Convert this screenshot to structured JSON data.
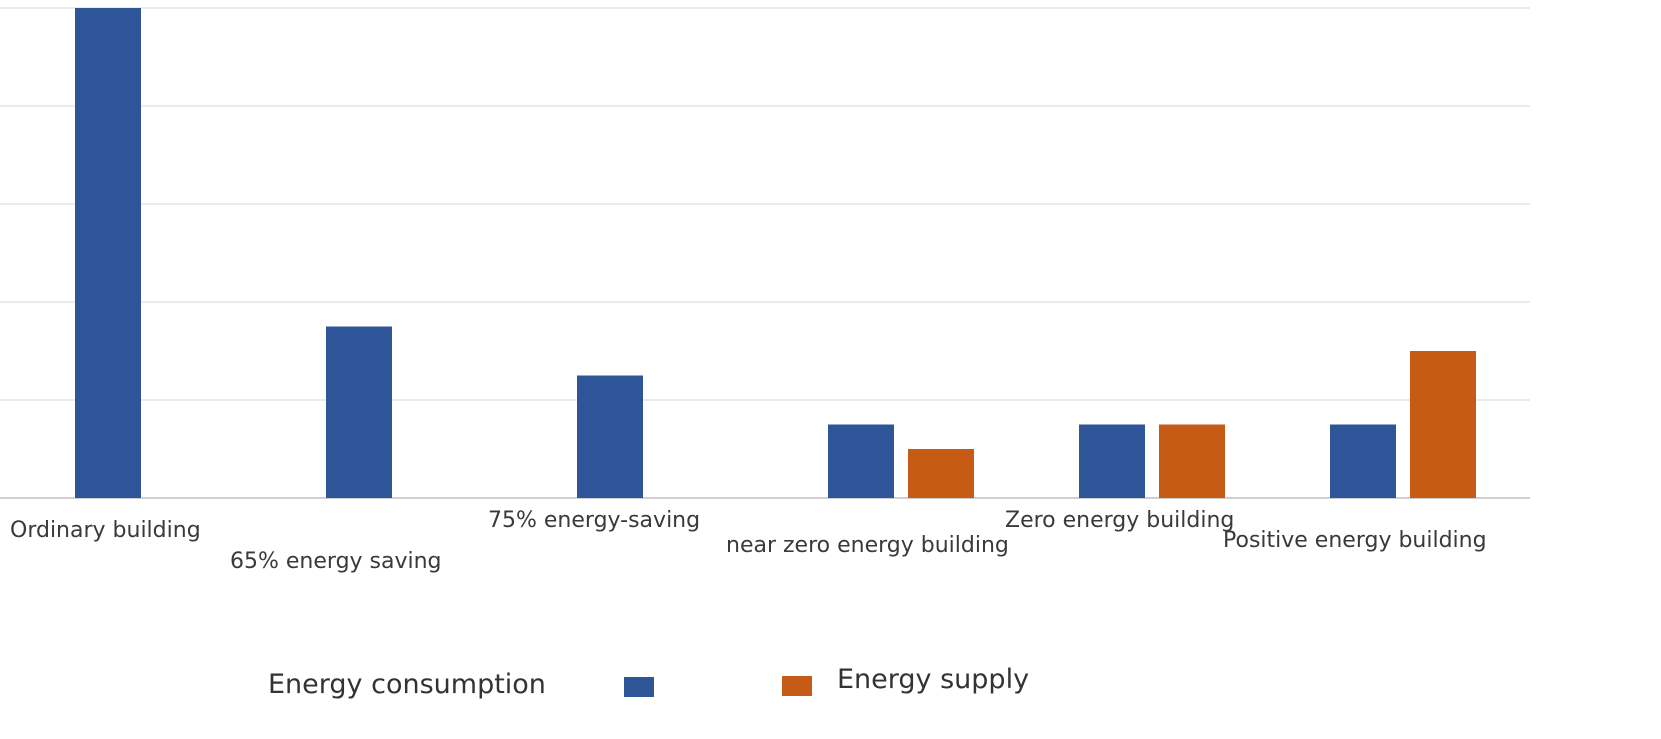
{
  "chart_data": {
    "type": "bar",
    "categories": [
      "Ordinary building",
      "65% energy saving",
      "75% energy-saving",
      "near zero energy building",
      "Zero energy building",
      "Positive energy building"
    ],
    "series": [
      {
        "name": "Energy consumption",
        "color": "#2e5597",
        "values": [
          100,
          35,
          25,
          15,
          15,
          15
        ]
      },
      {
        "name": "Energy supply",
        "color": "#c65b16",
        "values": [
          0,
          0,
          0,
          10,
          15,
          30
        ]
      }
    ],
    "ylim": [
      0,
      100
    ],
    "grid": true,
    "legend_position": "bottom"
  }
}
